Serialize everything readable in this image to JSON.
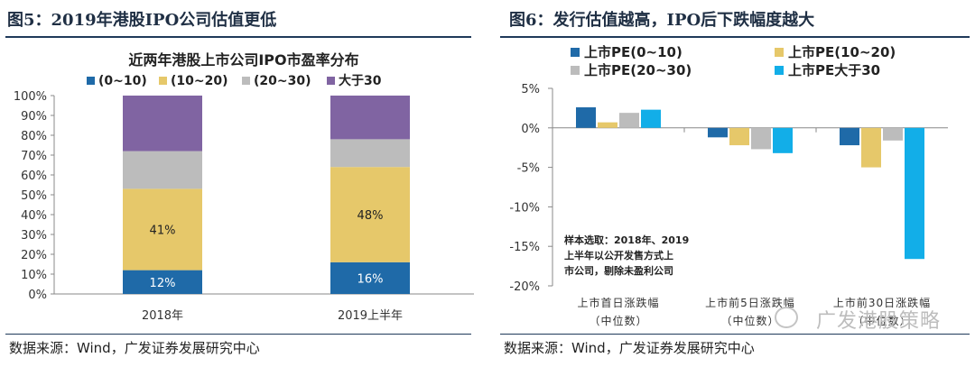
{
  "watermark": "广发港股策略",
  "chart_data": [
    {
      "type": "bar",
      "stacked": true,
      "figure_title": "图5：2019年港股IPO公司估值更低",
      "title": "近两年港股上市公司IPO市盈率分布",
      "categories": [
        "2018年",
        "2019上半年"
      ],
      "legend_position": "top",
      "series": [
        {
          "name": "(0~10)",
          "color": "#1f6aa8",
          "values": [
            12,
            16
          ],
          "labels": [
            "12%",
            "16%"
          ]
        },
        {
          "name": "(10~20)",
          "color": "#e6c86a",
          "values": [
            41,
            48
          ],
          "labels": [
            "41%",
            "48%"
          ]
        },
        {
          "name": "(20~30)",
          "color": "#bcbcbc",
          "values": [
            19,
            14
          ],
          "labels": [
            "",
            ""
          ]
        },
        {
          "name": "大于30",
          "color": "#8064a2",
          "values": [
            28,
            22
          ],
          "labels": [
            "",
            ""
          ]
        }
      ],
      "ylim": [
        0,
        100
      ],
      "yticks": [
        "0%",
        "10%",
        "20%",
        "30%",
        "40%",
        "50%",
        "60%",
        "70%",
        "80%",
        "90%",
        "100%"
      ],
      "source": "数据来源：Wind，广发证券发展研究中心"
    },
    {
      "type": "bar",
      "figure_title": "图6：发行估值越高，IPO后下跌幅度越大",
      "categories": [
        "上市首日涨跌幅（中位数）",
        "上市前5日涨跌幅（中位数）",
        "上市前30日涨跌幅（中位数）"
      ],
      "category_lines": [
        [
          "上市首日涨跌幅",
          "（中位数）"
        ],
        [
          "上市前5日涨跌幅",
          "（中位数）"
        ],
        [
          "上市前30日涨跌幅",
          "（中位数）"
        ]
      ],
      "legend_position": "top",
      "series": [
        {
          "name": "上市PE(0~10)",
          "color": "#1f6aa8",
          "values": [
            2.6,
            -1.2,
            -2.2
          ]
        },
        {
          "name": "上市PE(10~20)",
          "color": "#e6c86a",
          "values": [
            0.7,
            -2.2,
            -5.0
          ]
        },
        {
          "name": "上市PE(20~30)",
          "color": "#bcbcbc",
          "values": [
            1.9,
            -2.7,
            -1.6
          ]
        },
        {
          "name": "上市PE大于30",
          "color": "#12aee8",
          "values": [
            2.3,
            -3.2,
            -16.6
          ]
        }
      ],
      "ylim": [
        -20,
        5
      ],
      "yticks": [
        "5%",
        "0%",
        "-5%",
        "-10%",
        "-15%",
        "-20%"
      ],
      "annotation": [
        "样本选取：2018年、2019",
        "上半年以公开发售方式上",
        "市公司，剔除未盈利公司"
      ],
      "source": "数据来源：Wind，广发证券发展研究中心"
    }
  ]
}
